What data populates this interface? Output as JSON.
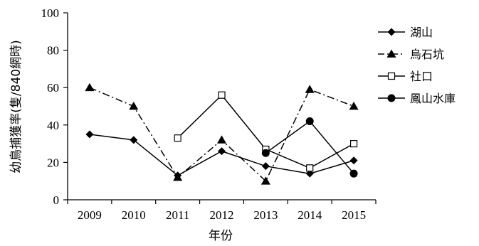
{
  "chart_data": {
    "type": "line",
    "title": "",
    "xlabel": "年份",
    "ylabel": "幼鳥捕獲率(隻/840網時)",
    "categories": [
      "2009",
      "2010",
      "2011",
      "2012",
      "2013",
      "2014",
      "2015"
    ],
    "yticks": [
      "0",
      "20",
      "40",
      "60",
      "80",
      "100"
    ],
    "ylim": [
      0,
      100
    ],
    "grid": false,
    "legend_position": "right",
    "series": [
      {
        "name": "湖山",
        "marker": "diamond-filled",
        "line": "solid",
        "color": "#000000",
        "values": [
          35,
          32,
          13,
          26,
          18,
          14,
          21
        ]
      },
      {
        "name": "烏石坑",
        "marker": "triangle-filled",
        "line": "dashdot",
        "color": "#000000",
        "values": [
          60,
          50,
          12,
          32,
          10,
          59,
          50
        ]
      },
      {
        "name": "社口",
        "marker": "square-open",
        "line": "solid",
        "color": "#000000",
        "values": [
          null,
          null,
          33,
          56,
          27,
          17,
          30
        ]
      },
      {
        "name": "鳳山水庫",
        "marker": "circle-filled",
        "line": "solid",
        "color": "#000000",
        "values": [
          null,
          null,
          null,
          null,
          25,
          42,
          14
        ]
      }
    ]
  }
}
